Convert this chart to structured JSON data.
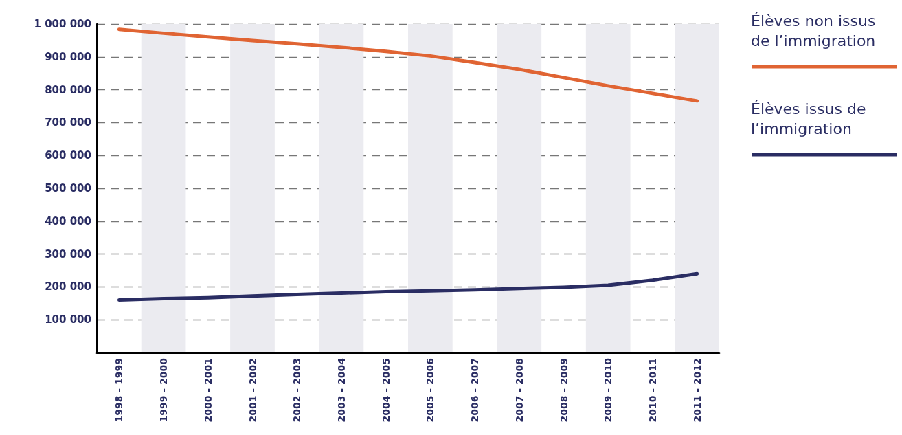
{
  "chart_data": {
    "type": "line",
    "categories": [
      "1998 - 1999",
      "1999 - 2000",
      "2000 - 2001",
      "2001 - 2002",
      "2002 - 2003",
      "2003 - 2004",
      "2004 - 2005",
      "2005 - 2006",
      "2006 - 2007",
      "2007 - 2008",
      "2008 - 2009",
      "2009 - 2010",
      "2010 - 2011",
      "2011 - 2012"
    ],
    "series": [
      {
        "name": "Élèves non issus de l’immigration",
        "color": "#e06433",
        "values": [
          984000,
          972000,
          961000,
          950000,
          940000,
          929000,
          917000,
          903000,
          883000,
          862000,
          837000,
          812000,
          789000,
          766000
        ]
      },
      {
        "name": "Élèves issus de l’immigration",
        "color": "#2a2d63",
        "values": [
          160000,
          164000,
          167000,
          172000,
          177000,
          181000,
          185000,
          188000,
          191000,
          195000,
          199000,
          205000,
          220000,
          240000
        ]
      }
    ],
    "ylim": [
      0,
      1000000
    ],
    "yticks": [
      {
        "value": 100000,
        "label": "100 000"
      },
      {
        "value": 200000,
        "label": "200 000"
      },
      {
        "value": 300000,
        "label": "300 000"
      },
      {
        "value": 400000,
        "label": "400 000"
      },
      {
        "value": 500000,
        "label": "500 000"
      },
      {
        "value": 600000,
        "label": "600 000"
      },
      {
        "value": 700000,
        "label": "700 000"
      },
      {
        "value": 800000,
        "label": "800 000"
      },
      {
        "value": 900000,
        "label": "900 000"
      },
      {
        "value": 1000000,
        "label": "1 000 000"
      }
    ],
    "grid": "y",
    "legend": "top right",
    "marker": "none",
    "line_style": "solid"
  }
}
